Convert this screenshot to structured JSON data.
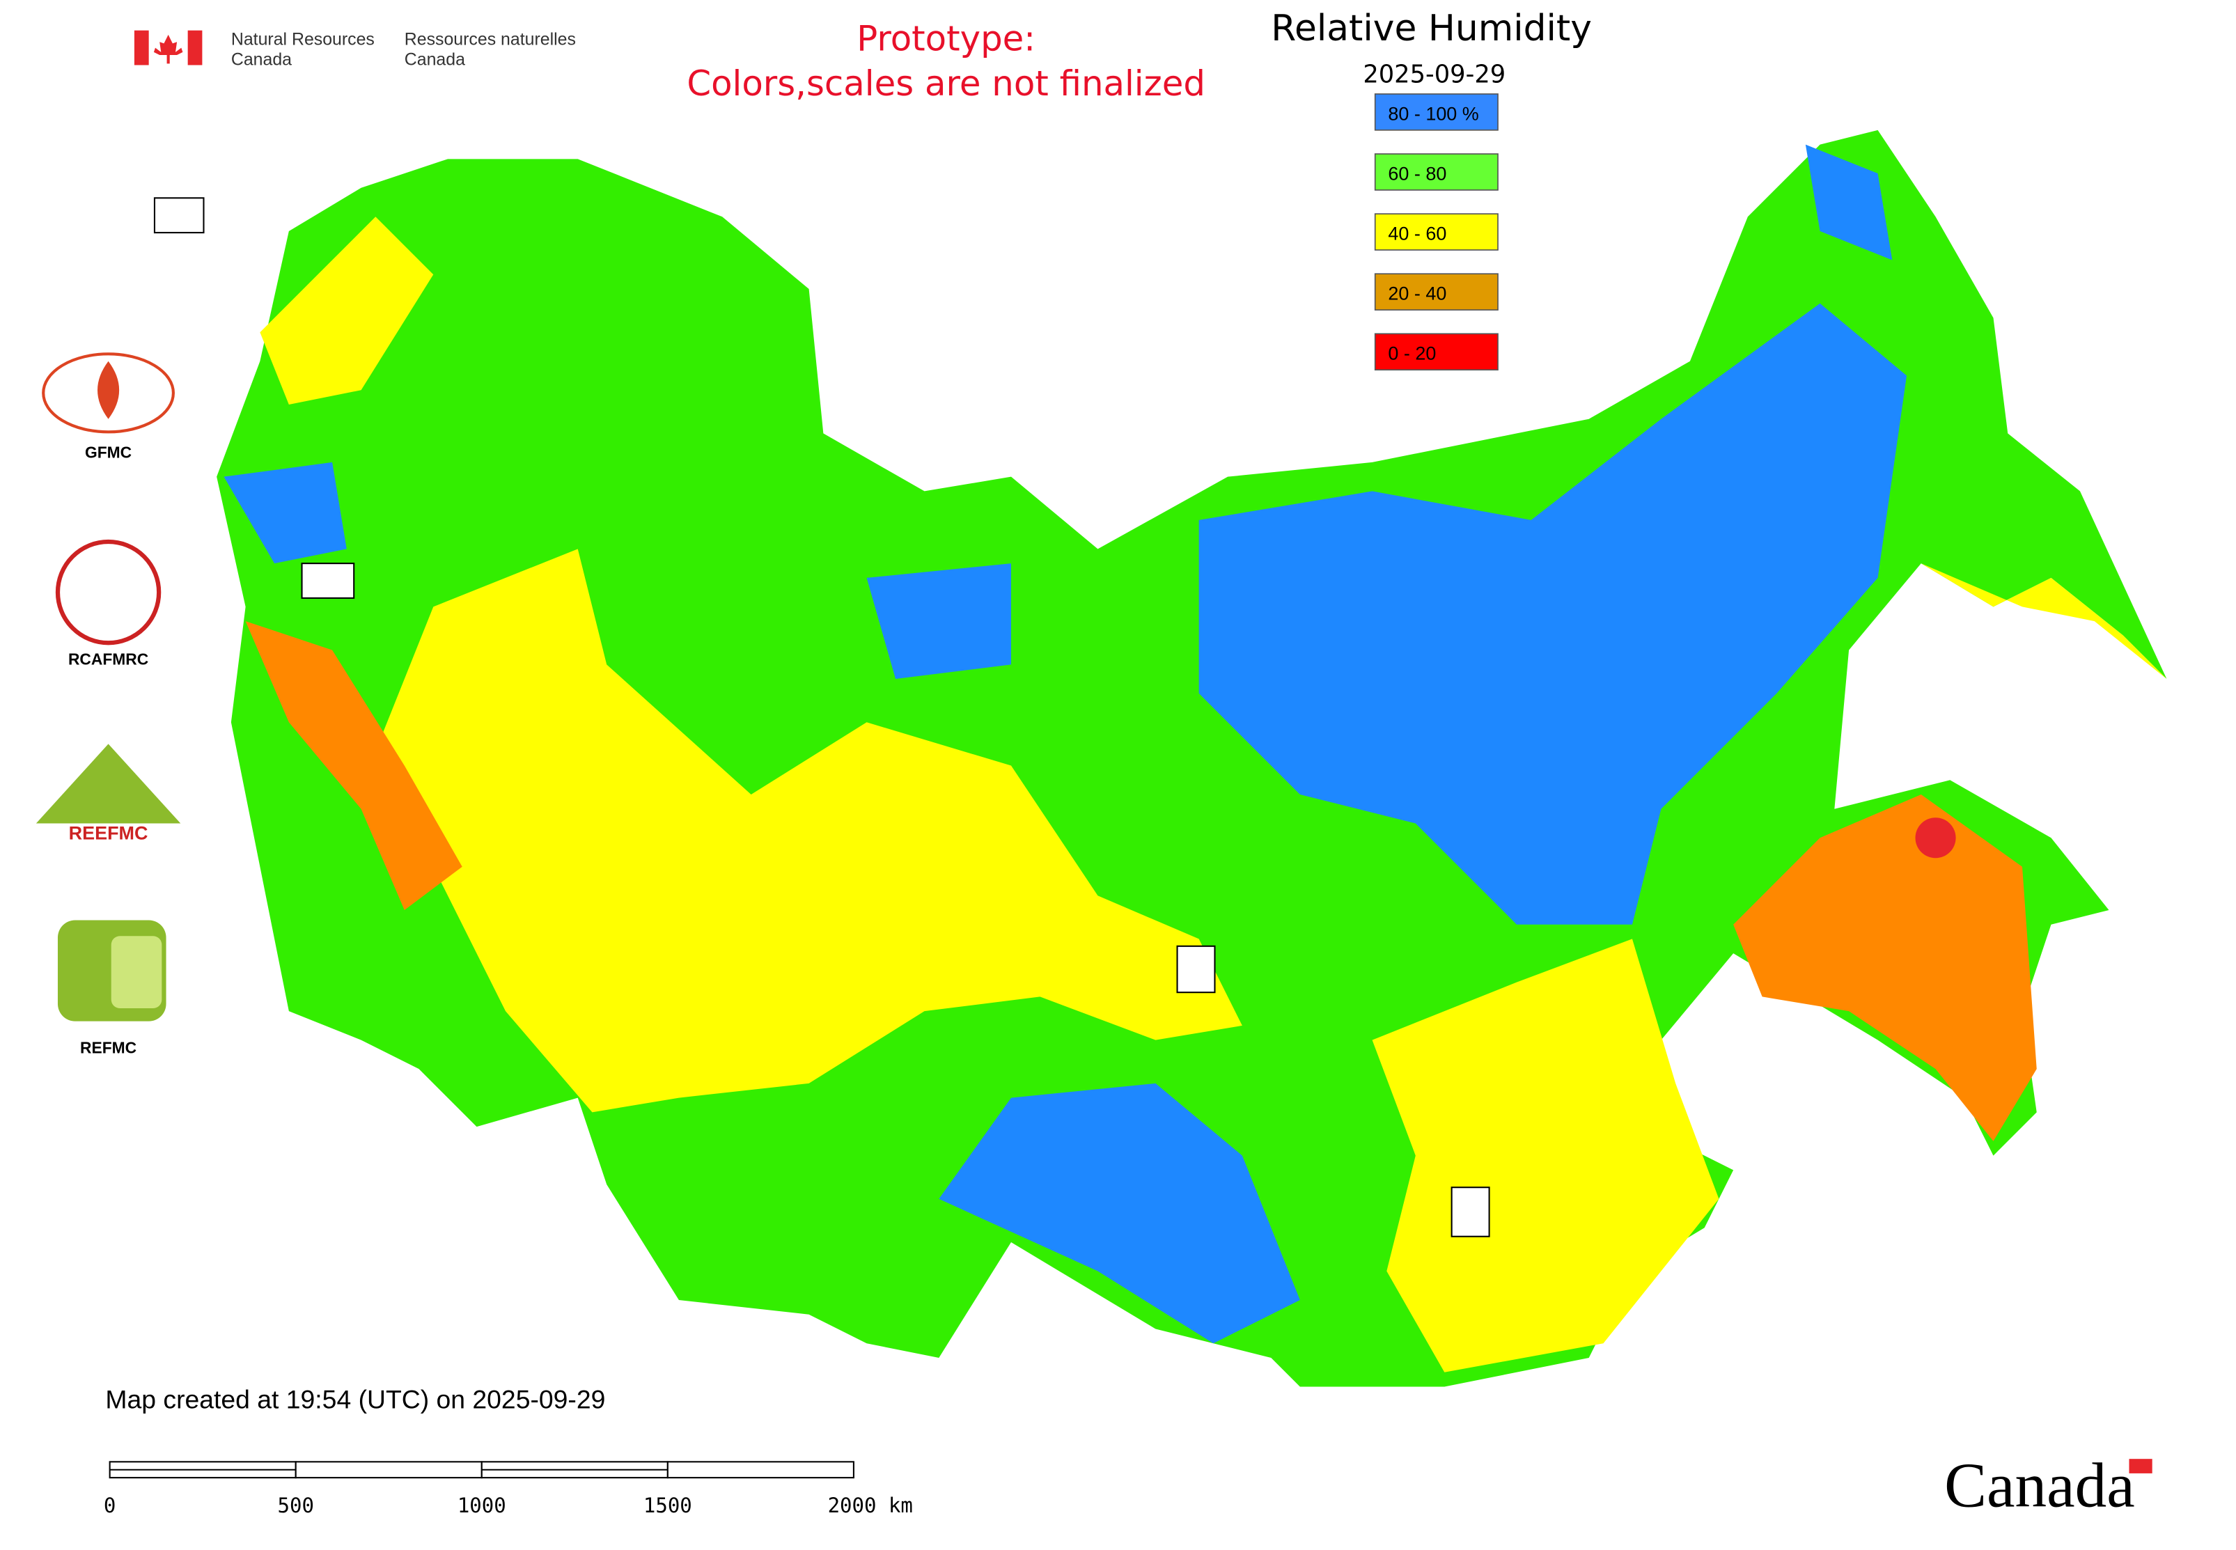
{
  "header": {
    "department_en": [
      "Natural Resources",
      "Canada"
    ],
    "department_fr": [
      "Ressources naturelles",
      "Canada"
    ],
    "notice": [
      "Prototype:",
      "Colors,scales are not finalized"
    ]
  },
  "map": {
    "title": "Relative Humidity",
    "date": "2025-09-29",
    "legend": [
      {
        "label": "80 - 100 %",
        "color": "#3388ff"
      },
      {
        "label": "60 - 80",
        "color": "#66ff33"
      },
      {
        "label": "40 - 60",
        "color": "#ffff00"
      },
      {
        "label": "20 - 40",
        "color": "#e09a00"
      },
      {
        "label": "0 - 20",
        "color": "#ff0000"
      }
    ],
    "footer": "Map created at 19:54 (UTC) on 2025-09-29",
    "scale_bar": [
      "0",
      "500",
      "1000",
      "1500",
      "2000 km"
    ]
  },
  "logos": [
    "GFMC",
    "RCAFMRC",
    "REEFMC",
    "REFMC"
  ],
  "wordmark": "Canada"
}
